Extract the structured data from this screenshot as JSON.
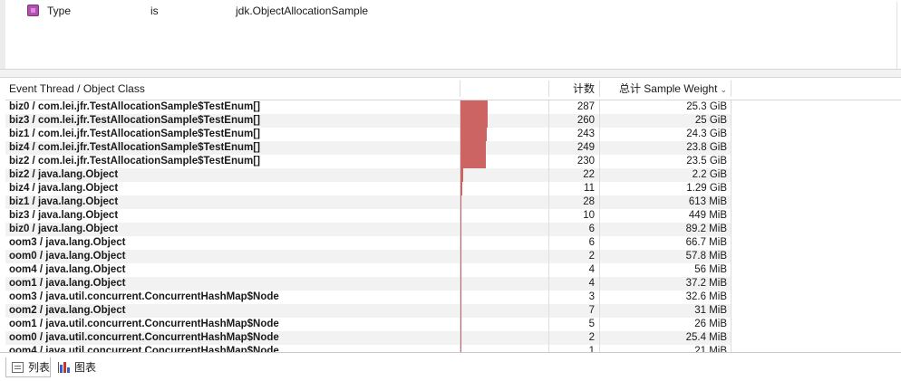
{
  "filter": {
    "field": "Type",
    "operator": "is",
    "value": "jdk.ObjectAllocationSample",
    "check_color": "#b14fb3"
  },
  "table": {
    "columns": {
      "name": "Event Thread / Object Class",
      "count": "计数",
      "weight": "总计 Sample Weight",
      "sort_indicator": "chevron-down"
    },
    "bar_color": "#cc6464",
    "rows": [
      {
        "name": "biz0 / com.lei.jfr.TestAllocationSample$TestEnum[]",
        "count": "287",
        "weight": "25.3 GiB",
        "weight_fraction": 1.0
      },
      {
        "name": "biz3 / com.lei.jfr.TestAllocationSample$TestEnum[]",
        "count": "260",
        "weight": "25 GiB",
        "weight_fraction": 0.988
      },
      {
        "name": "biz1 / com.lei.jfr.TestAllocationSample$TestEnum[]",
        "count": "243",
        "weight": "24.3 GiB",
        "weight_fraction": 0.96
      },
      {
        "name": "biz4 / com.lei.jfr.TestAllocationSample$TestEnum[]",
        "count": "249",
        "weight": "23.8 GiB",
        "weight_fraction": 0.941
      },
      {
        "name": "biz2 / com.lei.jfr.TestAllocationSample$TestEnum[]",
        "count": "230",
        "weight": "23.5 GiB",
        "weight_fraction": 0.929
      },
      {
        "name": "biz2 / java.lang.Object",
        "count": "22",
        "weight": "2.2 GiB",
        "weight_fraction": 0.087
      },
      {
        "name": "biz4 / java.lang.Object",
        "count": "11",
        "weight": "1.29 GiB",
        "weight_fraction": 0.051
      },
      {
        "name": "biz1 / java.lang.Object",
        "count": "28",
        "weight": "613 MiB",
        "weight_fraction": 0.024
      },
      {
        "name": "biz3 / java.lang.Object",
        "count": "10",
        "weight": "449 MiB",
        "weight_fraction": 0.017
      },
      {
        "name": "biz0 / java.lang.Object",
        "count": "6",
        "weight": "89.2 MiB",
        "weight_fraction": 0.0034
      },
      {
        "name": "oom3 / java.lang.Object",
        "count": "6",
        "weight": "66.7 MiB",
        "weight_fraction": 0.0026
      },
      {
        "name": "oom0 / java.lang.Object",
        "count": "2",
        "weight": "57.8 MiB",
        "weight_fraction": 0.0022
      },
      {
        "name": "oom4 / java.lang.Object",
        "count": "4",
        "weight": "56 MiB",
        "weight_fraction": 0.0022
      },
      {
        "name": "oom1 / java.lang.Object",
        "count": "4",
        "weight": "37.2 MiB",
        "weight_fraction": 0.0014
      },
      {
        "name": "oom3 / java.util.concurrent.ConcurrentHashMap$Node",
        "count": "3",
        "weight": "32.6 MiB",
        "weight_fraction": 0.0013
      },
      {
        "name": "oom2 / java.lang.Object",
        "count": "7",
        "weight": "31 MiB",
        "weight_fraction": 0.0012
      },
      {
        "name": "oom1 / java.util.concurrent.ConcurrentHashMap$Node",
        "count": "5",
        "weight": "26 MiB",
        "weight_fraction": 0.001
      },
      {
        "name": "oom0 / java.util.concurrent.ConcurrentHashMap$Node",
        "count": "2",
        "weight": "25.4 MiB",
        "weight_fraction": 0.001
      },
      {
        "name": "oom4 / java.util.concurrent.ConcurrentHashMap$Node",
        "count": "1",
        "weight": "21 MiB",
        "weight_fraction": 0.0008
      }
    ]
  },
  "tabs": [
    {
      "label": "列表",
      "icon": "list-icon",
      "active": true
    },
    {
      "label": "图表",
      "icon": "chart-icon",
      "active": false
    }
  ]
}
